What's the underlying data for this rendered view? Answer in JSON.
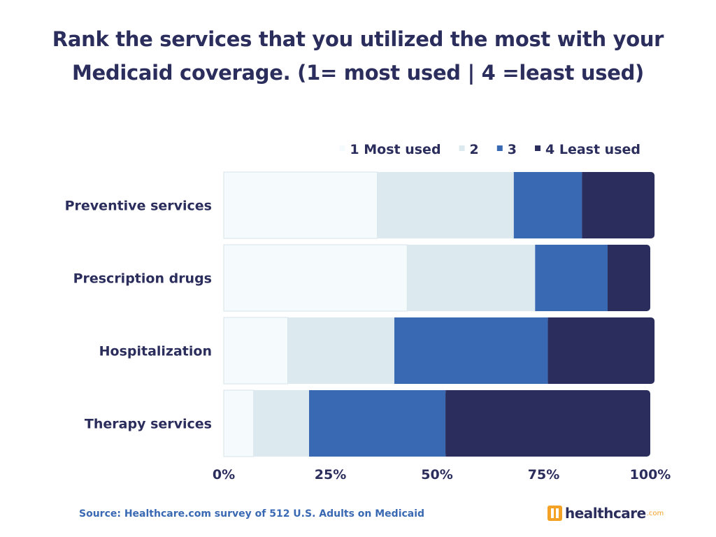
{
  "title": "Rank the services that you utilized the most with your Medicaid coverage. (1= most used | 4 =least used)",
  "source": "Source: Healthcare.com survey of 512 U.S. Adults on Medicaid",
  "logo": {
    "text": "healthcare",
    "suffix": ".com"
  },
  "chart_data": {
    "type": "bar",
    "orientation": "horizontal",
    "stacked": true,
    "categories": [
      "Preventive services",
      "Prescription drugs",
      "Hospitalization",
      "Therapy services"
    ],
    "series": [
      {
        "name": "1 Most used",
        "color": "#f5fafd",
        "values": [
          36,
          43,
          15,
          7
        ]
      },
      {
        "name": "2",
        "color": "#dce9ee",
        "values": [
          32,
          30,
          25,
          13
        ]
      },
      {
        "name": "3",
        "color": "#3a69b3",
        "values": [
          16,
          17,
          36,
          32
        ]
      },
      {
        "name": "4 Least used",
        "color": "#2b2d5c",
        "values": [
          17,
          10,
          25,
          48
        ]
      }
    ],
    "xticks": [
      "0%",
      "25%",
      "50%",
      "75%",
      "100%"
    ],
    "xlim": [
      0,
      100
    ],
    "legend_position": "top-right",
    "grid": false
  }
}
